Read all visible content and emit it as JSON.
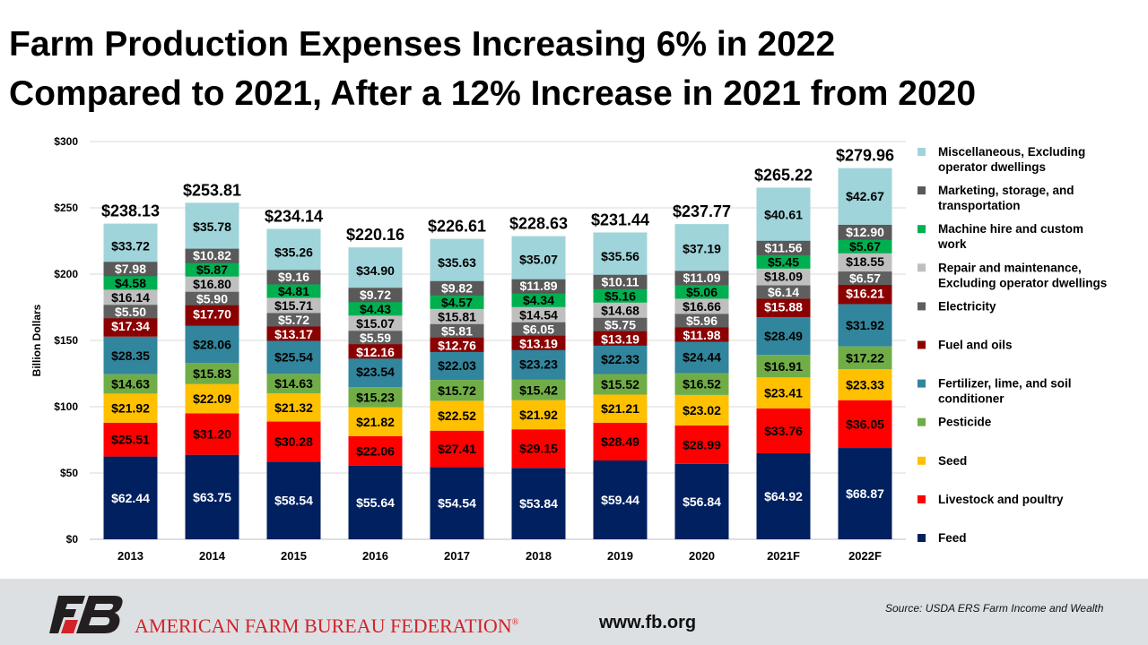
{
  "title_line1": "Farm Production Expenses Increasing 6% in 2022",
  "title_line2": "Compared to 2021, After a 12% Increase in 2021 from 2020",
  "chart_data": {
    "type": "stacked-bar",
    "categories": [
      "2013",
      "2014",
      "2015",
      "2016",
      "2017",
      "2018",
      "2019",
      "2020",
      "2021F",
      "2022F"
    ],
    "ylabel": "Billion Dollars",
    "ylim": [
      0,
      300
    ],
    "yticks": [
      0,
      50,
      100,
      150,
      200,
      250,
      300
    ],
    "ytick_labels": [
      "$0",
      "$50",
      "$100",
      "$150",
      "$200",
      "$250",
      "$300"
    ],
    "grid": true,
    "legend_position": "right",
    "totals": [
      "$238.13",
      "$253.81",
      "$234.14",
      "$220.16",
      "$226.61",
      "$228.63",
      "$231.44",
      "$237.77",
      "$265.22",
      "$279.96"
    ],
    "series": [
      {
        "name": "Feed",
        "color": "#002060",
        "label_color": "#ffffff",
        "values": [
          62.44,
          63.75,
          58.54,
          55.64,
          54.54,
          53.84,
          59.44,
          56.84,
          64.92,
          68.87
        ]
      },
      {
        "name": "Livestock and poultry",
        "color": "#ff0000",
        "label_color": "#000000",
        "values": [
          25.51,
          31.2,
          30.28,
          22.06,
          27.41,
          29.15,
          28.49,
          28.99,
          33.76,
          36.05
        ]
      },
      {
        "name": "Seed",
        "color": "#ffc000",
        "label_color": "#000000",
        "values": [
          21.92,
          22.09,
          21.32,
          21.82,
          22.52,
          21.92,
          21.21,
          23.02,
          23.41,
          23.33
        ]
      },
      {
        "name": "Pesticide",
        "color": "#70ad47",
        "label_color": "#000000",
        "values": [
          14.63,
          15.83,
          14.63,
          15.23,
          15.72,
          15.42,
          15.52,
          16.52,
          16.91,
          17.22
        ]
      },
      {
        "name": "Fertilizer, lime, and soil conditioner",
        "color": "#31859c",
        "label_color": "#000000",
        "values": [
          28.35,
          28.06,
          25.54,
          23.54,
          22.03,
          23.23,
          22.33,
          24.44,
          28.49,
          31.92
        ]
      },
      {
        "name": "Fuel and oils",
        "color": "#8b0000",
        "label_color": "#ffffff",
        "values": [
          17.34,
          17.7,
          13.17,
          12.16,
          12.76,
          13.19,
          13.19,
          11.98,
          15.88,
          16.21
        ]
      },
      {
        "name": "Electricity",
        "color": "#5f5f5f",
        "label_color": "#ffffff",
        "values": [
          5.5,
          5.9,
          5.72,
          5.59,
          5.81,
          6.05,
          5.75,
          5.96,
          6.14,
          6.57
        ]
      },
      {
        "name": "Repair and maintenance, Excluding operator dwellings",
        "color": "#bfbfbf",
        "label_color": "#000000",
        "values": [
          16.14,
          16.8,
          15.71,
          15.07,
          15.81,
          14.54,
          14.68,
          16.66,
          18.09,
          18.55
        ]
      },
      {
        "name": "Machine hire and custom work",
        "color": "#00b050",
        "label_color": "#000000",
        "values": [
          4.58,
          5.87,
          4.81,
          4.43,
          4.57,
          4.34,
          5.16,
          5.06,
          5.45,
          5.67
        ]
      },
      {
        "name": "Marketing, storage, and transportation",
        "color": "#595959",
        "label_color": "#ffffff",
        "values": [
          7.98,
          10.82,
          9.16,
          9.72,
          9.82,
          11.89,
          10.11,
          11.09,
          11.56,
          12.9
        ]
      },
      {
        "name": "Miscellaneous, Excluding operator dwellings",
        "color": "#9fd4da",
        "label_color": "#000000",
        "values": [
          33.72,
          35.78,
          35.26,
          34.9,
          35.63,
          35.07,
          35.56,
          37.19,
          40.61,
          42.67
        ]
      }
    ]
  },
  "footer": {
    "org": "AMERICAN FARM BUREAU FEDERATION",
    "registered": "®",
    "url": "www.fb.org",
    "source": "Source:  USDA  ERS Farm Income and Wealth",
    "logo_text": "FB"
  }
}
